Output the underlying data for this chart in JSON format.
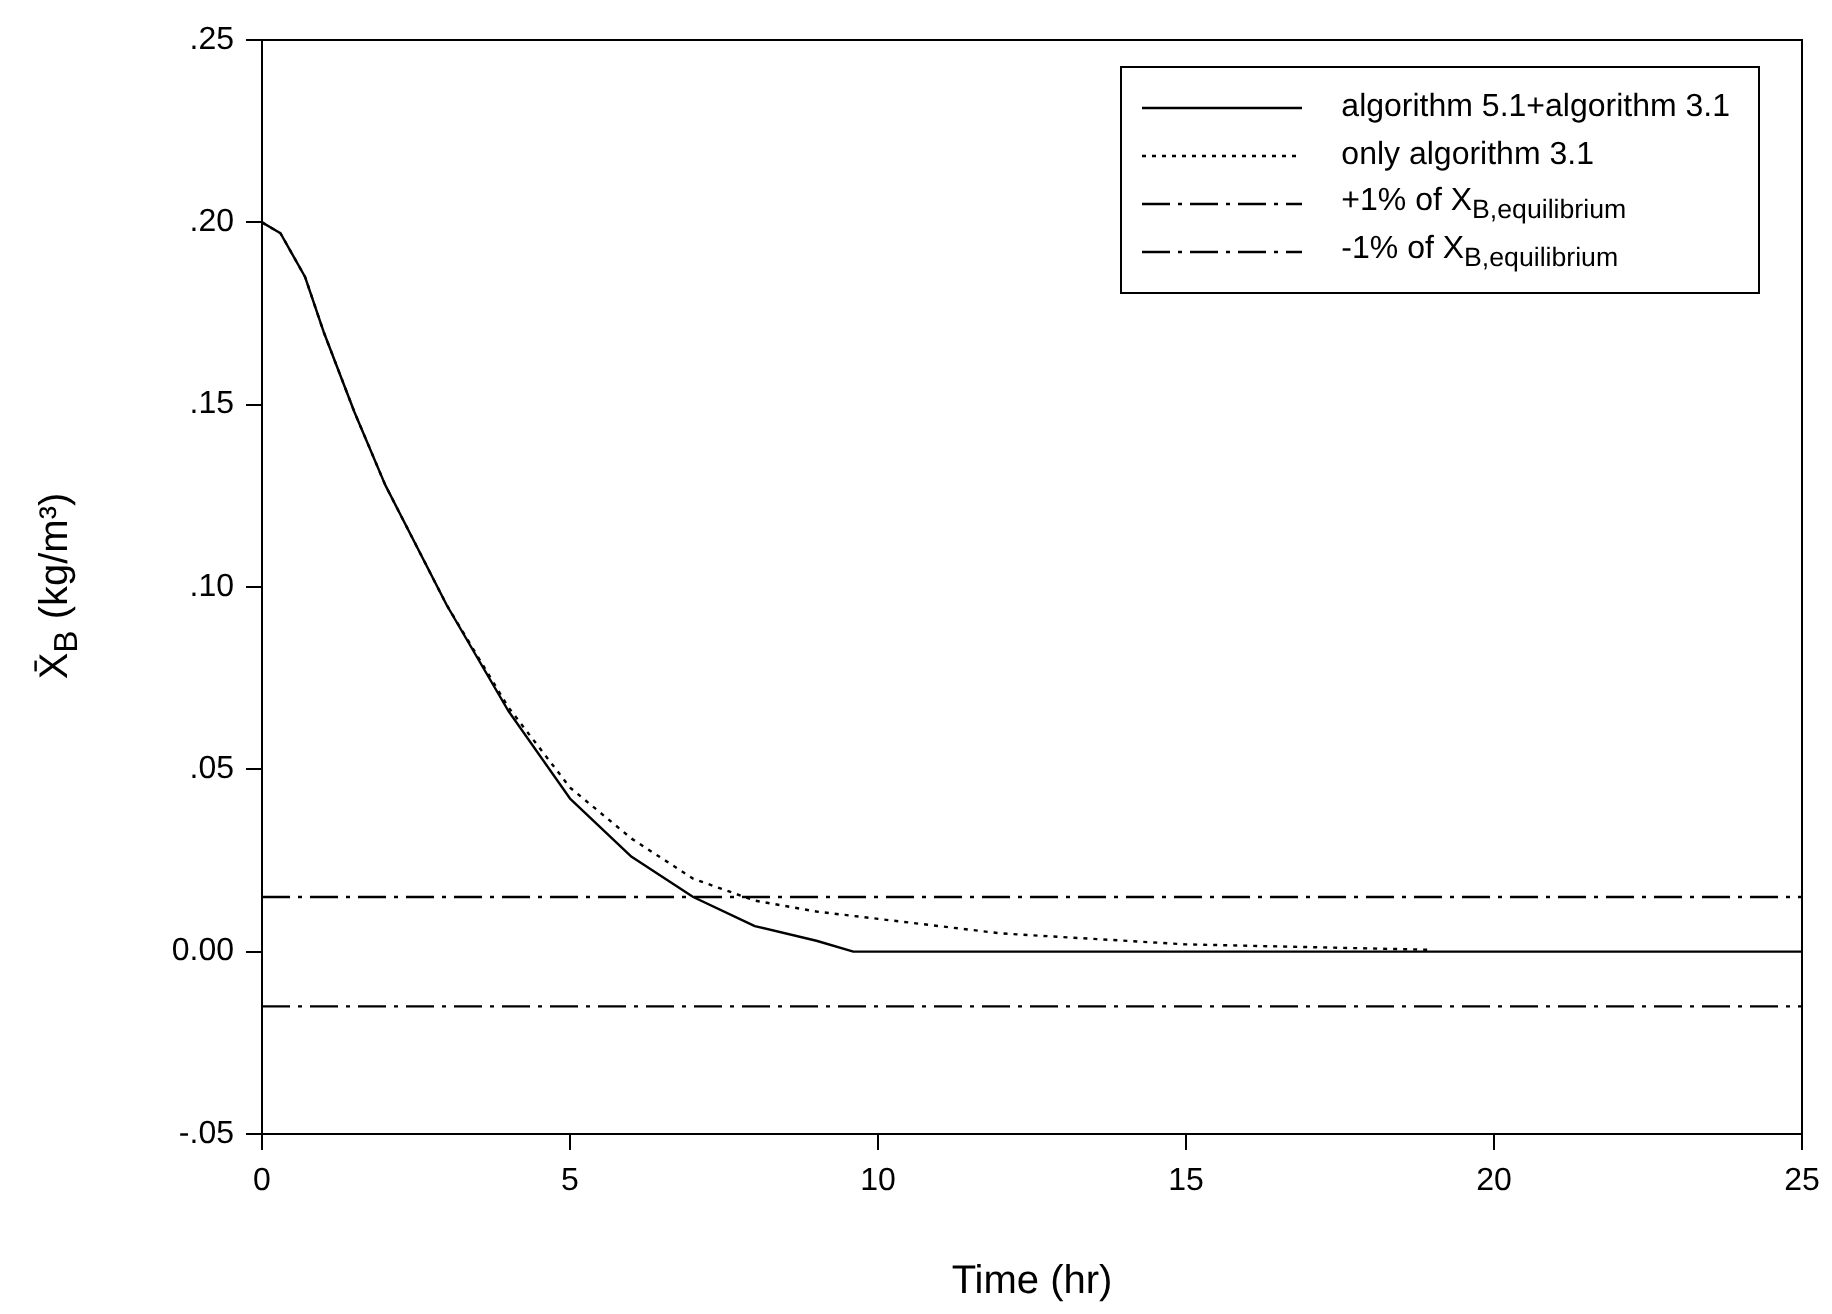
{
  "chart_data": {
    "type": "line",
    "xlabel": "Time (hr)",
    "ylabel": "X̄$_{B}$ (kg/m³)",
    "xlim": [
      0,
      25
    ],
    "xticks": [
      0,
      5,
      10,
      15,
      20,
      25
    ],
    "ylim": [
      -0.05,
      0.25
    ],
    "yticks": [
      {
        "value": -0.05,
        "label": "-.05"
      },
      {
        "value": 0,
        "label": "0.00"
      },
      {
        "value": 0.05,
        "label": ".05"
      },
      {
        "value": 0.1,
        "label": ".10"
      },
      {
        "value": 0.15,
        "label": ".15"
      },
      {
        "value": 0.2,
        "label": ".20"
      },
      {
        "value": 0.25,
        "label": ".25"
      }
    ],
    "grid": false,
    "legend": "top right",
    "marker": "none",
    "series": [
      {
        "name": "algorithm 5.1+algorithm 3.1",
        "color": "#000000",
        "line_style": "solid",
        "x": [
          0,
          0.3,
          0.7,
          1,
          1.5,
          2,
          3,
          4,
          5,
          6,
          7,
          8,
          9,
          9.6,
          25
        ],
        "values": [
          0.2,
          0.197,
          0.185,
          0.17,
          0.148,
          0.128,
          0.095,
          0.066,
          0.042,
          0.026,
          0.015,
          0.007,
          0.003,
          0,
          0
        ]
      },
      {
        "name": "only algorithm 3.1",
        "color": "#000000",
        "line_style": "dotted",
        "x": [
          0,
          0.3,
          0.7,
          1,
          1.5,
          2,
          3,
          4,
          5,
          6,
          7,
          8,
          9,
          10,
          12,
          15,
          19
        ],
        "values": [
          0.2,
          0.197,
          0.185,
          0.17,
          0.148,
          0.128,
          0.095,
          0.067,
          0.045,
          0.031,
          0.02,
          0.014,
          0.011,
          0.009,
          0.005,
          0.002,
          0.0005
        ]
      },
      {
        "name": "+1% of X$_{B,equilibrium}$",
        "color": "#000000",
        "line_style": "dashed",
        "x": [
          0,
          25
        ],
        "values": [
          0.015,
          0.015
        ]
      },
      {
        "name": "-1% of X$_{B,equilibrium}$",
        "color": "#000000",
        "line_style": "dashed",
        "x": [
          0,
          25
        ],
        "values": [
          -0.015,
          -0.015
        ]
      }
    ]
  }
}
